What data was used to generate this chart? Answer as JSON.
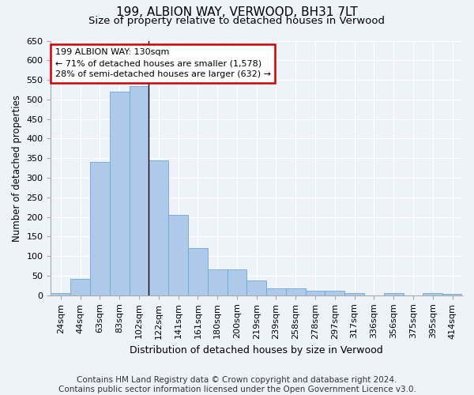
{
  "title1": "199, ALBION WAY, VERWOOD, BH31 7LT",
  "title2": "Size of property relative to detached houses in Verwood",
  "xlabel": "Distribution of detached houses by size in Verwood",
  "ylabel": "Number of detached properties",
  "categories": [
    "24sqm",
    "44sqm",
    "63sqm",
    "83sqm",
    "102sqm",
    "122sqm",
    "141sqm",
    "161sqm",
    "180sqm",
    "200sqm",
    "219sqm",
    "239sqm",
    "258sqm",
    "278sqm",
    "297sqm",
    "317sqm",
    "336sqm",
    "356sqm",
    "375sqm",
    "395sqm",
    "414sqm"
  ],
  "values": [
    5,
    42,
    340,
    520,
    535,
    345,
    205,
    120,
    66,
    66,
    38,
    18,
    18,
    12,
    12,
    5,
    0,
    5,
    0,
    5,
    3
  ],
  "bar_color": "#aec9ea",
  "bar_edge_color": "#6aaad4",
  "annotation_text": "199 ALBION WAY: 130sqm\n← 71% of detached houses are smaller (1,578)\n28% of semi-detached houses are larger (632) →",
  "annotation_box_color": "#ffffff",
  "annotation_box_edge_color": "#cc0000",
  "subject_bar_index": 4,
  "vline_x": 4.5,
  "ylim": [
    0,
    650
  ],
  "yticks": [
    0,
    50,
    100,
    150,
    200,
    250,
    300,
    350,
    400,
    450,
    500,
    550,
    600,
    650
  ],
  "bg_color": "#eef2f9",
  "grid_color": "#ffffff",
  "footer": "Contains HM Land Registry data © Crown copyright and database right 2024.\nContains public sector information licensed under the Open Government Licence v3.0.",
  "title1_fontsize": 11,
  "title2_fontsize": 9.5,
  "xlabel_fontsize": 9,
  "ylabel_fontsize": 8.5,
  "tick_fontsize": 8,
  "footer_fontsize": 7.5,
  "ann_fontsize": 8
}
